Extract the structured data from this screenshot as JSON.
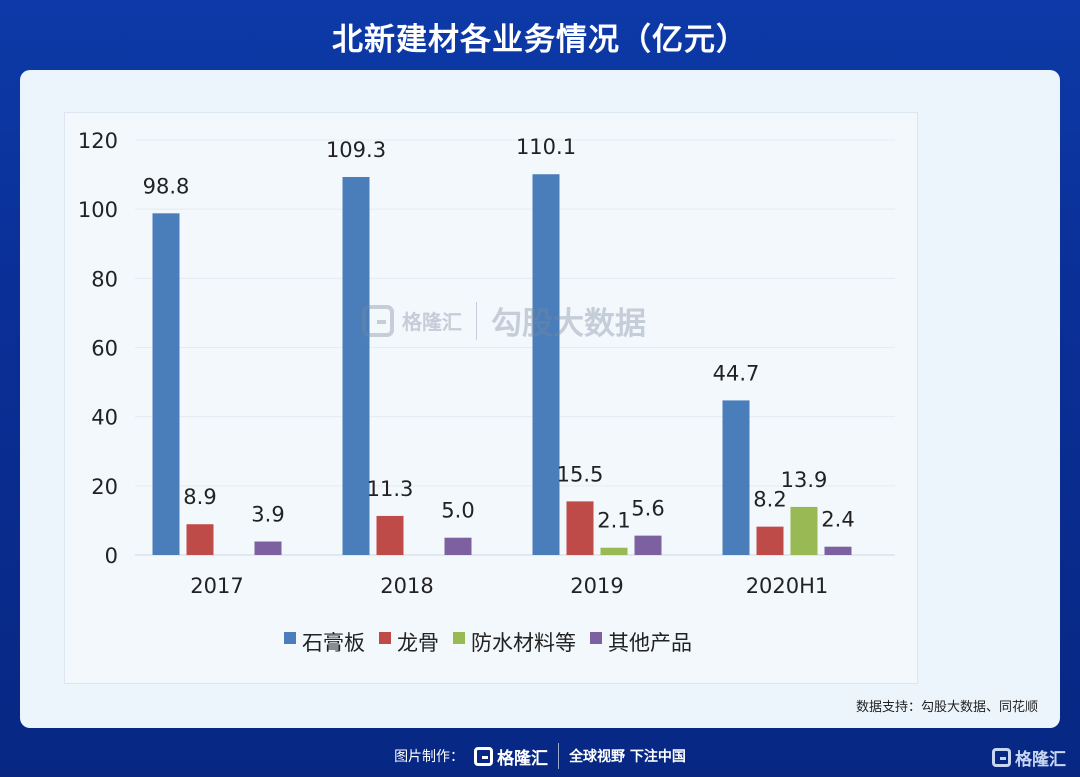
{
  "header": {
    "title": "北新建材各业务情况（亿元）"
  },
  "watermark": {
    "brand": "格隆汇",
    "label": "勾股大数据"
  },
  "source": "数据支持：勾股大数据、同花顺",
  "footer": {
    "made_by": "图片制作：",
    "brand": "格隆汇",
    "slogan": "全球视野 下注中国",
    "corner_brand": "格隆汇"
  },
  "chart_data": {
    "type": "bar",
    "title": "北新建材各业务情况（亿元）",
    "categories": [
      "2017",
      "2018",
      "2019",
      "2020H1"
    ],
    "ylim": [
      0,
      120
    ],
    "yticks": [
      0,
      20,
      40,
      60,
      80,
      100,
      120
    ],
    "grid": true,
    "legend_position": "bottom",
    "series": [
      {
        "name": "石膏板",
        "color": "#4a7ebb",
        "values": [
          98.8,
          109.3,
          110.1,
          44.7
        ],
        "labels": [
          "98.8",
          "109.3",
          "110.1",
          "44.7"
        ]
      },
      {
        "name": "龙骨",
        "color": "#be4b48",
        "values": [
          8.9,
          11.3,
          15.5,
          8.2
        ],
        "labels": [
          "8.9",
          "11.3",
          "15.5",
          "8.2"
        ]
      },
      {
        "name": "防水材料等",
        "color": "#98b954",
        "values": [
          null,
          null,
          2.1,
          13.9
        ],
        "labels": [
          "",
          "",
          "2.1",
          "13.9"
        ]
      },
      {
        "name": "其他产品",
        "color": "#7d60a0",
        "values": [
          3.9,
          5.0,
          5.6,
          2.4
        ],
        "labels": [
          "3.9",
          "5.0",
          "5.6",
          "2.4"
        ]
      }
    ]
  }
}
